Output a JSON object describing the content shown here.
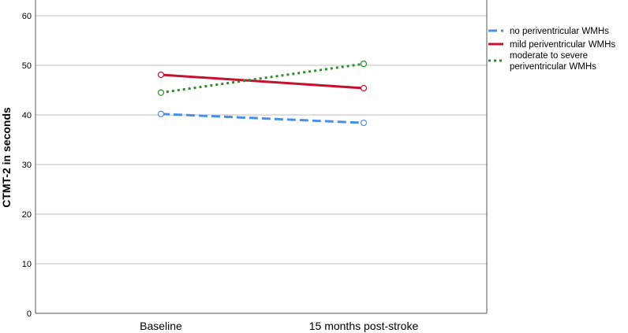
{
  "chart_data": {
    "type": "line",
    "title": "",
    "xlabel": "",
    "ylabel": "CTMT-2 in seconds",
    "categories": [
      "Baseline",
      "15 months post-stroke"
    ],
    "ylim": [
      0,
      60
    ],
    "yticks": [
      0,
      10,
      20,
      30,
      40,
      50,
      60
    ],
    "grid": true,
    "legend_position": "right",
    "series": [
      {
        "name": "no periventricular WMHs",
        "values": [
          40.2,
          38.4
        ],
        "color": "#4a90e2",
        "dash": "dashed"
      },
      {
        "name": "mild periventricular WMHs",
        "values": [
          48.1,
          45.4
        ],
        "color": "#c8102e",
        "dash": "solid"
      },
      {
        "name": [
          "moderate to severe",
          "periventricular WMHs"
        ],
        "values": [
          44.5,
          50.3
        ],
        "color": "#2e8b2e",
        "dash": "dotted"
      }
    ]
  }
}
